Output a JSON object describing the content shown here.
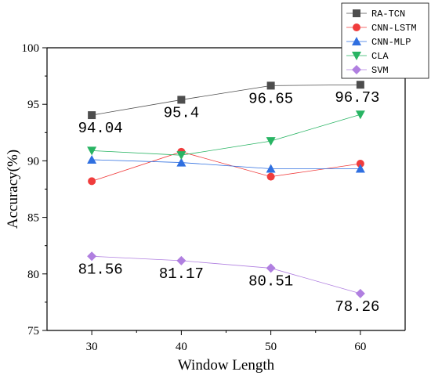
{
  "chart_data": {
    "type": "line",
    "xlabel": "Window Length",
    "ylabel": "Accuracy(%)",
    "x": [
      30,
      40,
      50,
      60
    ],
    "xlim": [
      25,
      65
    ],
    "ylim": [
      75,
      100
    ],
    "xticks": [
      30,
      40,
      50,
      60
    ],
    "yticks": [
      75,
      80,
      85,
      90,
      95,
      100
    ],
    "grid": false,
    "legend_position": "top-right",
    "series": [
      {
        "name": "RA-TCN",
        "values": [
          94.04,
          95.4,
          96.65,
          96.73
        ],
        "color": "#4d4d4d",
        "marker": "square",
        "labels": [
          "94.04",
          "95.4",
          "96.65",
          "96.73"
        ]
      },
      {
        "name": "CNN-LSTM",
        "values": [
          88.2,
          90.8,
          88.6,
          89.75
        ],
        "color": "#f03c3c",
        "marker": "circle"
      },
      {
        "name": "CNN-MLP",
        "values": [
          90.1,
          89.85,
          89.3,
          89.3
        ],
        "color": "#2f6fe0",
        "marker": "triangle-up"
      },
      {
        "name": "CLA",
        "values": [
          90.9,
          90.5,
          91.75,
          94.1
        ],
        "color": "#28b463",
        "marker": "triangle-down"
      },
      {
        "name": "SVM",
        "values": [
          81.56,
          81.17,
          80.51,
          78.26
        ],
        "color": "#b07fe0",
        "marker": "diamond",
        "labels": [
          "81.56",
          "81.17",
          "80.51",
          "78.26"
        ]
      }
    ]
  }
}
